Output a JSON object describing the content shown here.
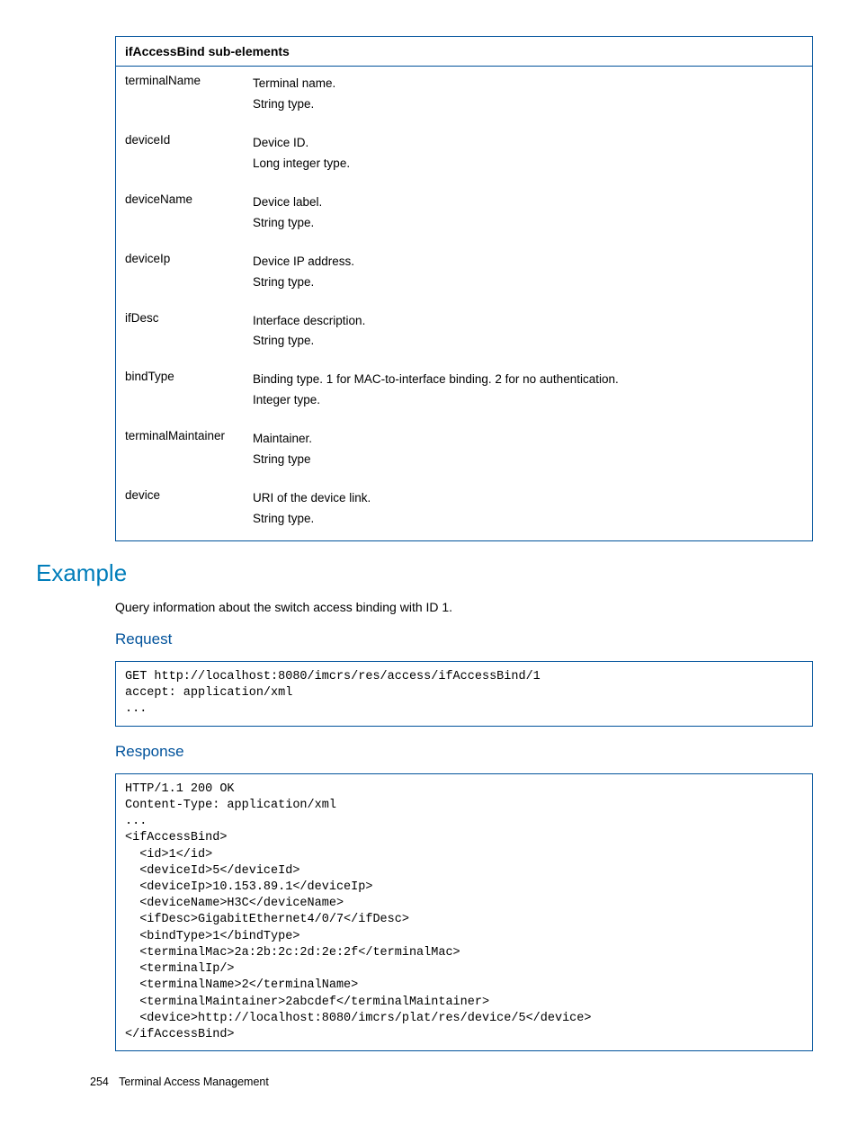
{
  "table": {
    "header": "ifAccessBind sub-elements",
    "rows": [
      {
        "name": "terminalName",
        "desc1": "Terminal name.",
        "desc2": "String type."
      },
      {
        "name": "deviceId",
        "desc1": "Device ID.",
        "desc2": "Long integer type."
      },
      {
        "name": "deviceName",
        "desc1": "Device label.",
        "desc2": "String type."
      },
      {
        "name": "deviceIp",
        "desc1": "Device IP address.",
        "desc2": "String type."
      },
      {
        "name": "ifDesc",
        "desc1": "Interface description.",
        "desc2": "String type."
      },
      {
        "name": "bindType",
        "desc1": "Binding type. 1 for MAC-to-interface binding. 2 for no authentication.",
        "desc2": "Integer type."
      },
      {
        "name": "terminalMaintainer",
        "desc1": "Maintainer.",
        "desc2": "String type"
      },
      {
        "name": "device",
        "desc1": "URI of the device link.",
        "desc2": "String type."
      }
    ]
  },
  "example": {
    "heading": "Example",
    "description": "Query information about the switch access binding with ID 1."
  },
  "request": {
    "heading": "Request",
    "code": "GET http://localhost:8080/imcrs/res/access/ifAccessBind/1\naccept: application/xml\n..."
  },
  "response": {
    "heading": "Response",
    "code": "HTTP/1.1 200 OK\nContent-Type: application/xml\n...\n<ifAccessBind>\n  <id>1</id>\n  <deviceId>5</deviceId>\n  <deviceIp>10.153.89.1</deviceIp>\n  <deviceName>H3C</deviceName>\n  <ifDesc>GigabitEthernet4/0/7</ifDesc>\n  <bindType>1</bindType>\n  <terminalMac>2a:2b:2c:2d:2e:2f</terminalMac>\n  <terminalIp/>\n  <terminalName>2</terminalName>\n  <terminalMaintainer>2abcdef</terminalMaintainer>\n  <device>http://localhost:8080/imcrs/plat/res/device/5</device>\n</ifAccessBind>"
  },
  "footer": {
    "page_number": "254",
    "title": "Terminal Access Management"
  }
}
